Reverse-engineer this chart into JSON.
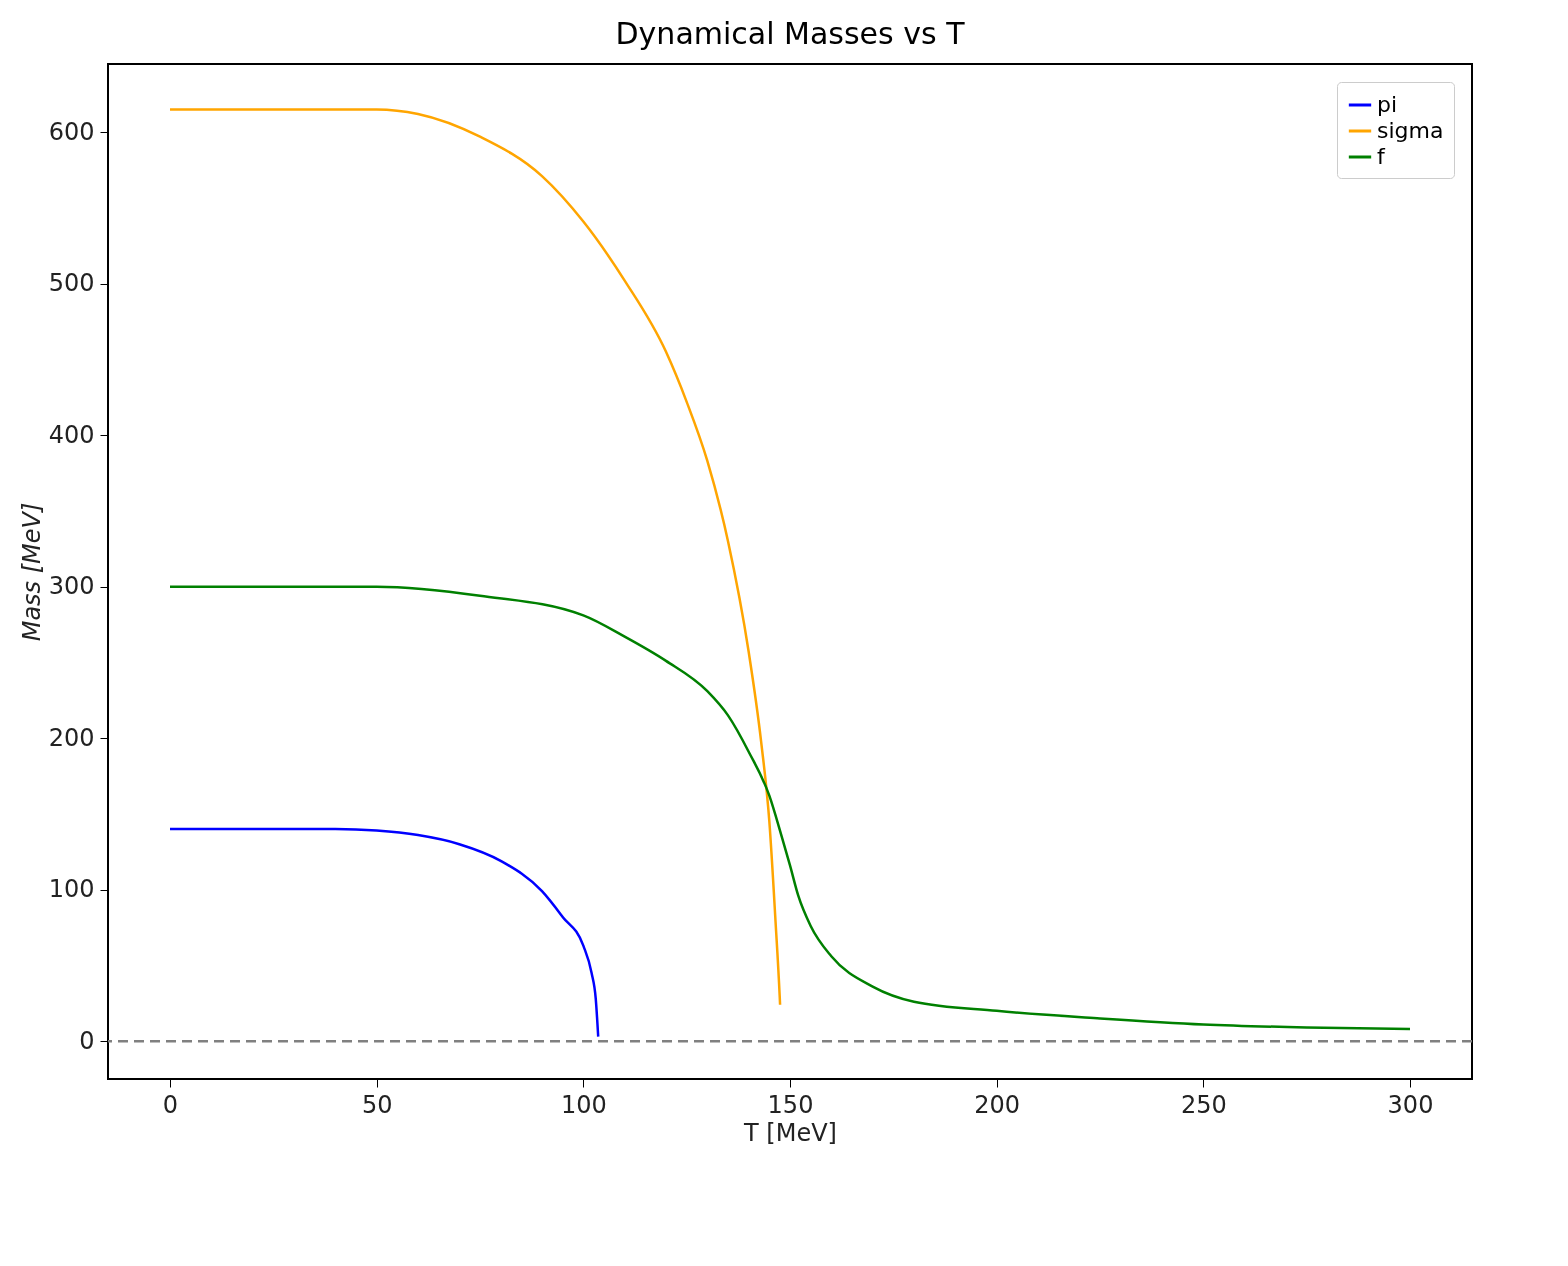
{
  "chart_data": {
    "type": "line",
    "title": "Dynamical Masses vs T",
    "xlabel": "T [MeV]",
    "ylabel": "Mass [MeV]",
    "xlim": [
      -15,
      315
    ],
    "ylim": [
      -25,
      645
    ],
    "xticks": [
      0,
      50,
      100,
      150,
      200,
      250,
      300
    ],
    "yticks": [
      0,
      100,
      200,
      300,
      400,
      500,
      600
    ],
    "grid": false,
    "legend": "top right",
    "line_style": "solid",
    "marker": "none",
    "series": [
      {
        "name": "pi",
        "color": "#0000ff",
        "x": [
          0,
          40,
          50,
          60,
          70,
          80,
          90,
          95,
          100,
          102,
          103,
          103.6
        ],
        "values": [
          140,
          140,
          139,
          136,
          130,
          119,
          99,
          82,
          63,
          45,
          28,
          3
        ]
      },
      {
        "name": "sigma",
        "color": "#ffa500",
        "x": [
          0,
          50,
          60,
          75,
          90,
          100,
          110,
          120,
          125,
          130,
          135,
          140,
          143,
          145,
          146.5,
          147.5,
          147.6
        ],
        "values": [
          615,
          615,
          612,
          597,
          571,
          541,
          502,
          455,
          422,
          383,
          330,
          257,
          198,
          145,
          79,
          30,
          24
        ]
      },
      {
        "name": "f",
        "color": "#008000",
        "x": [
          0,
          50,
          75,
          100,
          110,
          120,
          130,
          135,
          140,
          145,
          148,
          150,
          152,
          155,
          160,
          170,
          180,
          200,
          225,
          250,
          275,
          300
        ],
        "values": [
          300,
          300,
          294,
          281,
          267,
          251,
          231,
          215,
          191,
          162,
          135,
          116,
          96,
          76,
          56,
          36,
          26,
          20,
          15,
          11,
          9,
          8
        ]
      }
    ],
    "ref_lines": [
      {
        "axis": "y",
        "value": 0,
        "color": "#808080",
        "line_style": "dashed"
      }
    ]
  }
}
